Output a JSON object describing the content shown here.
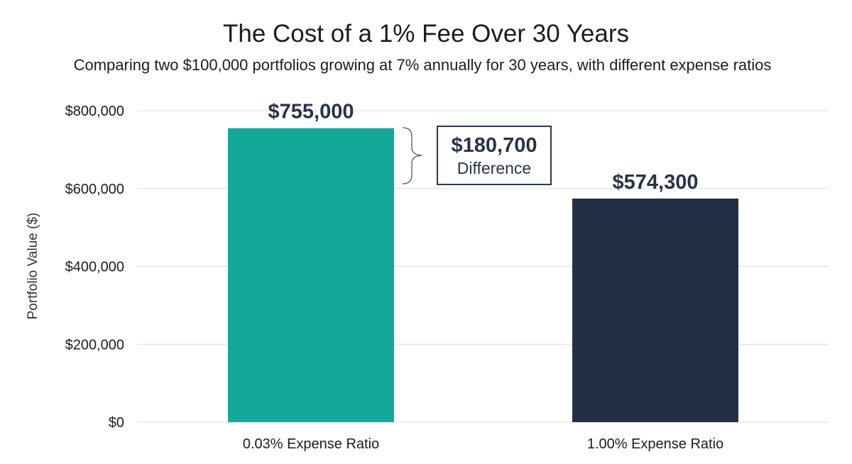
{
  "chart_data": {
    "type": "bar",
    "title": "The Cost of a 1% Fee Over 30 Years",
    "subtitle": "Comparing two $100,000 portfolios growing at 7% annually for 30 years, with different expense ratios",
    "ylabel": "Portfolio Value ($)",
    "xlabel": "",
    "ylim": [
      0,
      800000
    ],
    "yticks": [
      0,
      200000,
      400000,
      600000,
      800000
    ],
    "ytick_labels": [
      "$0",
      "$200,000",
      "$400,000",
      "$600,000",
      "$800,000"
    ],
    "grid": true,
    "categories": [
      "0.03% Expense Ratio",
      "1.00% Expense Ratio"
    ],
    "values": [
      755000,
      574300
    ],
    "value_labels": [
      "$755,000",
      "$574,300"
    ],
    "colors": [
      "#14a89a",
      "#232f45"
    ],
    "annotation": {
      "value": "$180,700",
      "label": "Difference"
    }
  }
}
